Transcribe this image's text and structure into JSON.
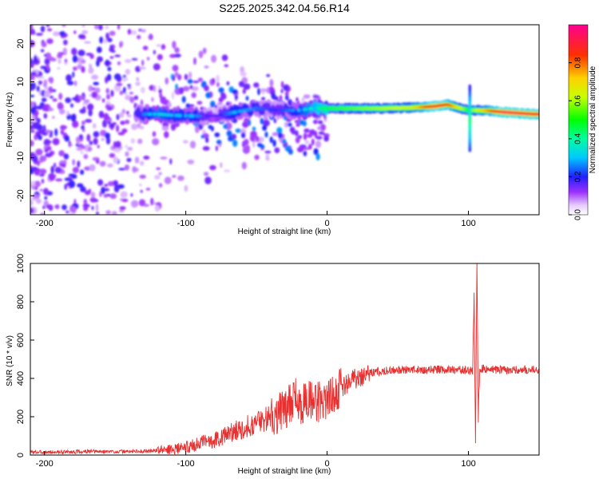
{
  "title": "S225.2025.342.04.56.R14",
  "chart_data": [
    {
      "type": "heatmap",
      "xlabel": "Height of straight line (km)",
      "ylabel": "Frequency (Hz)",
      "xlim": [
        -210,
        150
      ],
      "ylim": [
        -25,
        25
      ],
      "xticks": [
        -200,
        -100,
        0,
        100
      ],
      "yticks": [
        -20,
        -10,
        0,
        10,
        20
      ],
      "grid": false,
      "ridge": [
        {
          "x": -130,
          "f": 1.5,
          "a": 0.25
        },
        {
          "x": -120,
          "f": 1.5,
          "a": 0.35
        },
        {
          "x": -110,
          "f": 1.2,
          "a": 0.3
        },
        {
          "x": -95,
          "f": 1.0,
          "a": 0.3
        },
        {
          "x": -80,
          "f": 1.0,
          "a": 0.15
        },
        {
          "x": -65,
          "f": 2.0,
          "a": 0.3
        },
        {
          "x": -50,
          "f": 3.0,
          "a": 0.25
        },
        {
          "x": -35,
          "f": 2.5,
          "a": 0.2
        },
        {
          "x": -20,
          "f": 2.5,
          "a": 0.3
        },
        {
          "x": -10,
          "f": 3.0,
          "a": 0.4
        },
        {
          "x": 0,
          "f": 3.0,
          "a": 0.5
        },
        {
          "x": 20,
          "f": 3.0,
          "a": 0.55
        },
        {
          "x": 40,
          "f": 3.0,
          "a": 0.6
        },
        {
          "x": 60,
          "f": 3.2,
          "a": 0.65
        },
        {
          "x": 75,
          "f": 3.5,
          "a": 0.9
        },
        {
          "x": 85,
          "f": 4.0,
          "a": 0.85
        },
        {
          "x": 100,
          "f": 2.5,
          "a": 0.5
        },
        {
          "x": 110,
          "f": 2.5,
          "a": 0.7
        },
        {
          "x": 125,
          "f": 2.0,
          "a": 0.95
        },
        {
          "x": 145,
          "f": 1.5,
          "a": 0.9
        }
      ]
    },
    {
      "type": "colorbar",
      "label": "Normalized spectral amplitude",
      "range": [
        0,
        1
      ],
      "ticks": [
        "0.0",
        "0.2",
        "0.4",
        "0.6",
        "0.8"
      ],
      "tick_values": [
        0,
        0.2,
        0.4,
        0.6,
        0.8
      ]
    },
    {
      "type": "line",
      "xlabel": "Height of straight line (km)",
      "ylabel": "SNR (10 * v/v)",
      "xlim": [
        -210,
        150
      ],
      "ylim": [
        0,
        1000
      ],
      "xticks": [
        -200,
        -100,
        0,
        100
      ],
      "yticks": [
        0,
        200,
        400,
        600,
        800,
        1000
      ],
      "series": [
        {
          "name": "SNR",
          "color": "#e83030",
          "x": [
            -210,
            -190,
            -170,
            -150,
            -130,
            -110,
            -100,
            -90,
            -80,
            -70,
            -60,
            -50,
            -40,
            -30,
            -25,
            -22,
            -20,
            -15,
            -10,
            -5,
            0,
            10,
            20,
            30,
            40,
            60,
            80,
            95,
            100,
            103,
            104,
            105,
            106,
            107,
            108,
            110,
            120,
            130,
            150
          ],
          "y": [
            15,
            15,
            18,
            18,
            20,
            30,
            40,
            60,
            80,
            110,
            140,
            170,
            200,
            240,
            280,
            300,
            260,
            280,
            280,
            280,
            300,
            350,
            400,
            430,
            440,
            445,
            445,
            445,
            440,
            440,
            840,
            70,
            1000,
            200,
            450,
            450,
            445,
            445,
            445
          ]
        }
      ]
    }
  ]
}
